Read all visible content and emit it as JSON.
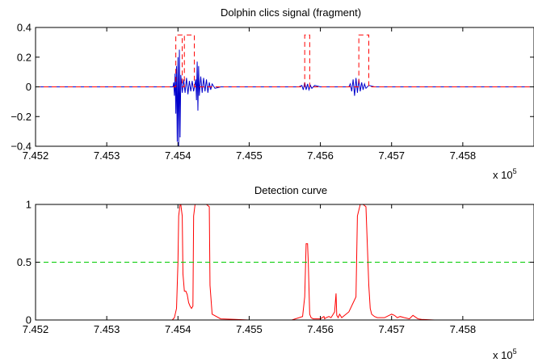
{
  "chart_data": [
    {
      "type": "line",
      "title": "Dolphin clics signal (fragment)",
      "xlim": [
        745200,
        745900
      ],
      "ylim": [
        -0.4,
        0.4
      ],
      "x_ticks": [
        745200,
        745300,
        745400,
        745500,
        745600,
        745700,
        745800
      ],
      "x_tick_labels": [
        "7.452",
        "7.453",
        "7.454",
        "7.455",
        "7.456",
        "7.457",
        "7.458"
      ],
      "y_ticks": [
        -0.4,
        -0.2,
        0,
        0.2,
        0.4
      ],
      "y_tick_labels": [
        "−0.4",
        "−0.2",
        "0",
        "0.2",
        "0.4"
      ],
      "x_multiplier": {
        "base": "x 10",
        "exponent": "5"
      },
      "series": [
        {
          "color": "#0000cc",
          "style": "solid",
          "x": [
            745200,
            745393,
            745394,
            745395,
            745396,
            745397,
            745398,
            745399,
            745400,
            745401,
            745402,
            745403,
            745404,
            745406,
            745408,
            745410,
            745412,
            745414,
            745416,
            745418,
            745420,
            745422,
            745424,
            745425,
            745426,
            745427,
            745428,
            745429,
            745430,
            745432,
            745434,
            745436,
            745438,
            745440,
            745442,
            745444,
            745446,
            745448,
            745452,
            745460,
            745570,
            745574,
            745576,
            745578,
            745580,
            745582,
            745584,
            745586,
            745588,
            745592,
            745600,
            745620,
            745640,
            745642,
            745644,
            745646,
            745648,
            745650,
            745652,
            745654,
            745656,
            745658,
            745660,
            745662,
            745664,
            745668,
            745676,
            745900
          ],
          "y": [
            0,
            0,
            0.03,
            -0.06,
            0.09,
            -0.18,
            0.14,
            -0.37,
            0.2,
            -0.4,
            0.25,
            -0.34,
            0.08,
            -0.04,
            0.05,
            -0.04,
            0.06,
            -0.05,
            0.04,
            -0.03,
            0.04,
            -0.03,
            0.02,
            0.05,
            -0.09,
            0.17,
            -0.16,
            0.14,
            -0.06,
            0.07,
            -0.04,
            0.06,
            -0.03,
            0.05,
            -0.04,
            0.03,
            -0.02,
            0.02,
            -0.01,
            0,
            0,
            0.01,
            -0.02,
            0.03,
            -0.02,
            0.02,
            -0.02,
            0.01,
            -0.01,
            0.01,
            0,
            0,
            0,
            0.02,
            -0.03,
            0.05,
            -0.06,
            0.06,
            -0.04,
            0.05,
            -0.03,
            0.03,
            -0.02,
            0.02,
            -0.01,
            0.01,
            0,
            0
          ]
        },
        {
          "color": "#ff0000",
          "style": "dashed",
          "x": [
            745200,
            745397,
            745397,
            745406,
            745406,
            745409,
            745409,
            745423,
            745423,
            745446,
            745446,
            745578,
            745578,
            745585,
            745585,
            745654,
            745654,
            745668,
            745668,
            745900
          ],
          "y": [
            0,
            0,
            0.35,
            0.35,
            0,
            0,
            0.35,
            0.35,
            0,
            0,
            0,
            0,
            0.35,
            0.35,
            0,
            0,
            0.35,
            0.35,
            0,
            0
          ]
        }
      ]
    },
    {
      "type": "line",
      "title": "Detection curve",
      "xlim": [
        745200,
        745900
      ],
      "ylim": [
        0,
        1
      ],
      "x_ticks": [
        745200,
        745300,
        745400,
        745500,
        745600,
        745700,
        745800
      ],
      "x_tick_labels": [
        "7.452",
        "7.453",
        "7.454",
        "7.455",
        "7.456",
        "7.457",
        "7.458"
      ],
      "y_ticks": [
        0,
        0.5,
        1
      ],
      "y_tick_labels": [
        "0",
        "0.5",
        "1"
      ],
      "x_multiplier": {
        "base": "x 10",
        "exponent": "5"
      },
      "series": [
        {
          "color": "#ff0000",
          "style": "solid",
          "x": [
            745200,
            745392,
            745395,
            745398,
            745400,
            745401,
            745403,
            745404,
            745406,
            745407,
            745409,
            745411,
            745413,
            745415,
            745417,
            745419,
            745421,
            745422,
            745424,
            745425,
            745427,
            745440,
            745444,
            745445,
            745448,
            745460,
            745480,
            745500,
            745520,
            745540,
            745560,
            745575,
            745578,
            745580,
            745582,
            745583,
            745585,
            745587,
            745590,
            745600,
            745605,
            745606,
            745608,
            745612,
            745615,
            745618,
            745620,
            745622,
            745623,
            745625,
            745627,
            745630,
            745640,
            745650,
            745652,
            745656,
            745660,
            745664,
            745668,
            745670,
            745672,
            745676,
            745680,
            745690,
            745700,
            745704,
            745708,
            745712,
            745718,
            745725,
            745730,
            745737,
            745742,
            745760,
            745800,
            745900
          ],
          "y": [
            0,
            0,
            0.02,
            0.1,
            0.5,
            0.9,
            1,
            1,
            0.9,
            0.4,
            0.25,
            0.25,
            0.22,
            0.15,
            0.12,
            0.1,
            0.12,
            0.9,
            1,
            1,
            1,
            1,
            0.98,
            0.3,
            0.05,
            0.01,
            0.005,
            0,
            0,
            0,
            0,
            0.03,
            0.2,
            0.66,
            0.66,
            0.5,
            0.05,
            0.02,
            0.01,
            0.01,
            0.03,
            0.01,
            0.02,
            0.03,
            0.02,
            0.05,
            0.07,
            0.23,
            0.04,
            0.02,
            0.05,
            0.02,
            0.07,
            0.2,
            0.9,
            1,
            1,
            0.98,
            0.3,
            0.1,
            0.05,
            0.03,
            0.02,
            0.02,
            0.05,
            0.04,
            0.02,
            0.03,
            0.02,
            0.01,
            0.04,
            0.01,
            0.005,
            0,
            0,
            0
          ]
        },
        {
          "color": "#00cc00",
          "style": "dashed",
          "x": [
            745200,
            745900
          ],
          "y": [
            0.5,
            0.5
          ]
        }
      ]
    }
  ]
}
